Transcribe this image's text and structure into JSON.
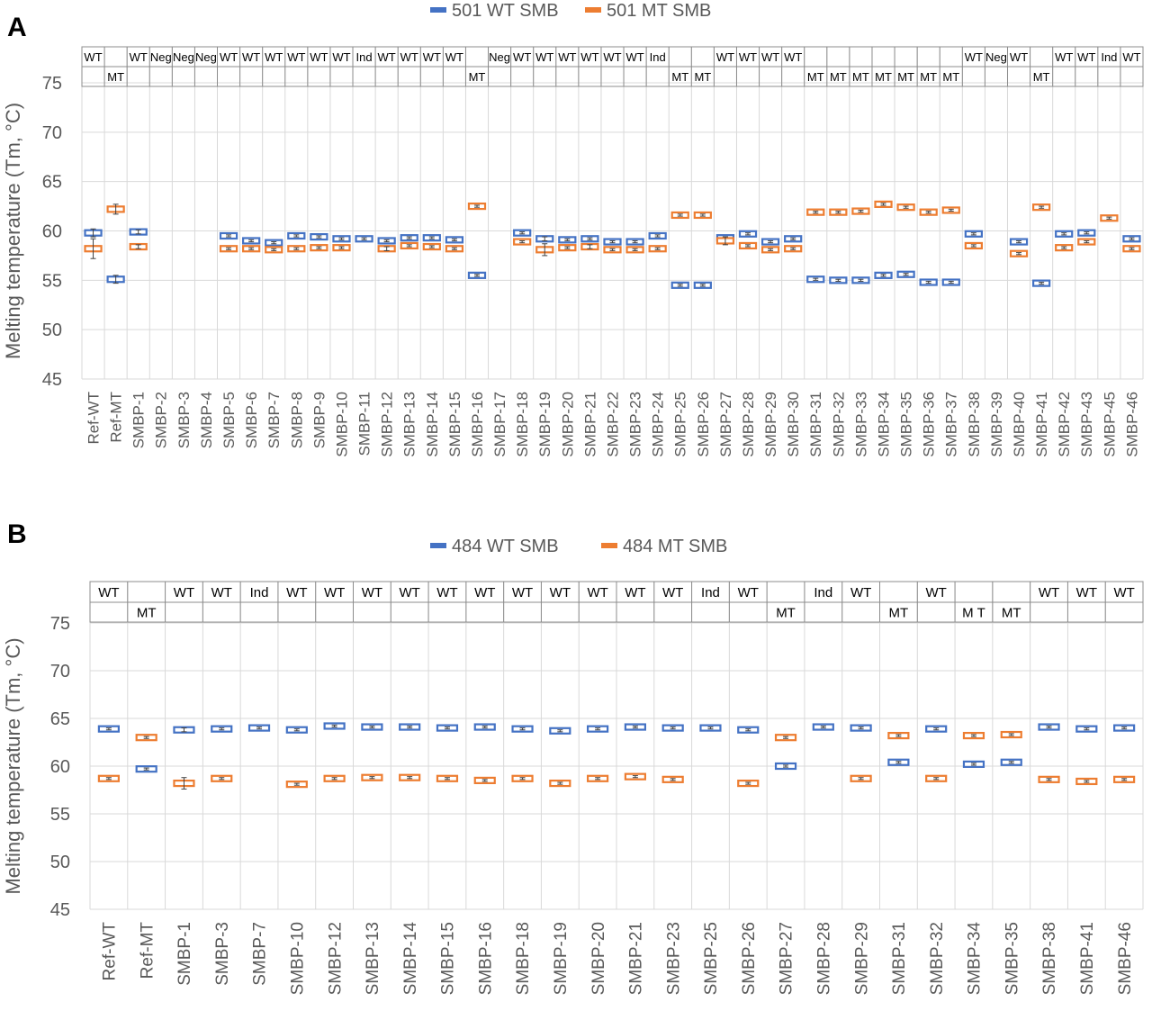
{
  "chart_data": [
    {
      "type": "scatter",
      "panel_label": "A",
      "ylabel": "Melting temperature (Tm, °C)",
      "ylim": [
        45,
        75
      ],
      "yticks": [
        45,
        50,
        55,
        60,
        65,
        70,
        75
      ],
      "grid": true,
      "legend_position": "top-center",
      "colors": {
        "wt": "#4472C4",
        "mt": "#ED7D31"
      },
      "series": [
        {
          "name": "501 WT SMB",
          "key": "wt"
        },
        {
          "name": "501 MT SMB",
          "key": "mt"
        }
      ],
      "categories": [
        "Ref-WT",
        "Ref-MT",
        "SMBP-1",
        "SMBP-2",
        "SMBP-3",
        "SMBP-4",
        "SMBP-5",
        "SMBP-6",
        "SMBP-7",
        "SMBP-8",
        "SMBP-9",
        "SMBP-10",
        "SMBP-11",
        "SMBP-12",
        "SMBP-13",
        "SMBP-14",
        "SMBP-15",
        "SMBP-16",
        "SMBP-17",
        "SMBP-18",
        "SMBP-19",
        "SMBP-20",
        "SMBP-21",
        "SMBP-22",
        "SMBP-23",
        "SMBP-24",
        "SMBP-25",
        "SMBP-26",
        "SMBP-27",
        "SMBP-28",
        "SMBP-29",
        "SMBP-30",
        "SMBP-31",
        "SMBP-32",
        "SMBP-33",
        "SMBP-34",
        "SMBP-35",
        "SMBP-36",
        "SMBP-37",
        "SMBP-38",
        "SMBP-39",
        "SMBP-40",
        "SMBP-41",
        "SMBP-42",
        "SMBP-43",
        "SMBP-45",
        "SMBP-46"
      ],
      "genotype_top": [
        "WT",
        "",
        "WT",
        "Neg",
        "Neg",
        "Neg",
        "WT",
        "WT",
        "WT",
        "WT",
        "WT",
        "WT",
        "Ind",
        "WT",
        "WT",
        "WT",
        "WT",
        "",
        "Neg",
        "WT",
        "WT",
        "WT",
        "WT",
        "WT",
        "WT",
        "Ind",
        "",
        "",
        "WT",
        "WT",
        "WT",
        "WT",
        "",
        "",
        "",
        "",
        "",
        "",
        "",
        "WT",
        "Neg",
        "WT",
        "",
        "WT",
        "WT",
        "Ind",
        "WT"
      ],
      "genotype_bottom": [
        "",
        "MT",
        "",
        "",
        "",
        "",
        "",
        "",
        "",
        "",
        "",
        "",
        "",
        "",
        "",
        "",
        "",
        "MT",
        "",
        "",
        "",
        "",
        "",
        "",
        "",
        "",
        "MT",
        "MT",
        "",
        "",
        "",
        "",
        "MT",
        "MT",
        "MT",
        "MT",
        "MT",
        "MT",
        "MT",
        "",
        "",
        "",
        "MT",
        "",
        "",
        "",
        ""
      ],
      "wt_values": [
        59.8,
        55.1,
        59.9,
        null,
        null,
        null,
        59.5,
        59.0,
        58.8,
        59.5,
        59.4,
        59.2,
        59.2,
        59.0,
        59.3,
        59.3,
        59.1,
        55.5,
        null,
        59.8,
        59.2,
        59.1,
        59.2,
        58.9,
        58.9,
        59.5,
        54.5,
        54.5,
        59.3,
        59.7,
        58.9,
        59.2,
        55.1,
        55.0,
        55.0,
        55.5,
        55.6,
        54.8,
        54.8,
        59.7,
        null,
        58.9,
        54.7,
        59.7,
        59.8,
        null,
        59.2
      ],
      "mt_values": [
        58.2,
        62.2,
        58.4,
        null,
        null,
        null,
        58.2,
        58.2,
        58.1,
        58.2,
        58.3,
        58.3,
        null,
        58.2,
        58.5,
        58.4,
        58.2,
        62.5,
        null,
        58.9,
        58.1,
        58.3,
        58.4,
        58.1,
        58.1,
        58.2,
        61.6,
        61.6,
        59.0,
        58.5,
        58.1,
        58.2,
        61.9,
        61.9,
        62.0,
        62.7,
        62.4,
        61.9,
        62.1,
        58.5,
        null,
        57.7,
        62.4,
        58.3,
        58.9,
        61.3,
        58.2
      ],
      "wt_err": [
        0.4,
        0.4,
        0.2,
        null,
        null,
        null,
        0.1,
        0.1,
        0.1,
        0.1,
        0.1,
        0.1,
        0.1,
        0.1,
        0.1,
        0.1,
        0.1,
        0.1,
        null,
        0.1,
        0.2,
        0.1,
        0.1,
        0.1,
        0.1,
        0.1,
        0.1,
        0.1,
        0.1,
        0.1,
        0.1,
        0.1,
        0.1,
        0.1,
        0.1,
        0.1,
        0.1,
        0.1,
        0.1,
        0.1,
        null,
        0.1,
        0.1,
        0.1,
        0.1,
        null,
        0.1
      ],
      "mt_err": [
        1.0,
        0.5,
        0.2,
        null,
        null,
        null,
        0.1,
        0.1,
        0.1,
        0.1,
        0.1,
        0.1,
        null,
        0.2,
        0.1,
        0.1,
        0.1,
        0.1,
        null,
        0.1,
        0.6,
        0.1,
        0.2,
        0.1,
        0.1,
        0.1,
        0.1,
        0.1,
        0.4,
        0.1,
        0.1,
        0.1,
        0.1,
        0.1,
        0.1,
        0.1,
        0.1,
        0.1,
        0.1,
        0.1,
        null,
        0.1,
        0.1,
        0.1,
        0.1,
        0.1,
        0.1
      ]
    },
    {
      "type": "scatter",
      "panel_label": "B",
      "ylabel": "Melting temperature (Tm, °C)",
      "ylim": [
        45,
        75
      ],
      "yticks": [
        45,
        50,
        55,
        60,
        65,
        70,
        75
      ],
      "grid": true,
      "legend_position": "top-center",
      "colors": {
        "wt": "#4472C4",
        "mt": "#ED7D31"
      },
      "series": [
        {
          "name": "484 WT SMB",
          "key": "wt"
        },
        {
          "name": "484  MT SMB",
          "key": "mt"
        }
      ],
      "categories": [
        "Ref-WT",
        "Ref-MT",
        "SMBP-1",
        "SMBP-3",
        "SMBP-7",
        "SMBP-10",
        "SMBP-12",
        "SMBP-13",
        "SMBP-14",
        "SMBP-15",
        "SMBP-16",
        "SMBP-18",
        "SMBP-19",
        "SMBP-20",
        "SMBP-21",
        "SMBP-23",
        "SMBP-25",
        "SMBP-26",
        "SMBP-27",
        "SMBP-28",
        "SMBP-29",
        "SMBP-31",
        "SMBP-32",
        "SMBP-34",
        "SMBP-35",
        "SMBP-38",
        "SMBP-41",
        "SMBP-46"
      ],
      "genotype_top": [
        "WT",
        "",
        "WT",
        "WT",
        "Ind",
        "WT",
        "WT",
        "WT",
        "WT",
        "WT",
        "WT",
        "WT",
        "WT",
        "WT",
        "WT",
        "WT",
        "Ind",
        "WT",
        "",
        "Ind",
        "WT",
        "",
        "WT",
        "",
        "",
        "WT",
        "WT",
        "WT"
      ],
      "genotype_bottom": [
        "",
        "MT",
        "",
        "",
        "",
        "",
        "",
        "",
        "",
        "",
        "",
        "",
        "",
        "",
        "",
        "",
        "",
        "",
        "MT",
        "",
        "",
        "MT",
        "",
        "M T",
        "MT",
        "",
        "",
        ""
      ],
      "wt_values": [
        63.9,
        59.7,
        63.8,
        63.9,
        64.0,
        63.8,
        64.2,
        64.1,
        64.1,
        64.0,
        64.1,
        63.9,
        63.7,
        63.9,
        64.1,
        64.0,
        64.0,
        63.8,
        60.0,
        64.1,
        64.0,
        60.4,
        63.9,
        60.2,
        60.4,
        64.1,
        63.9,
        64.0
      ],
      "mt_values": [
        58.7,
        63.0,
        58.2,
        58.7,
        null,
        58.1,
        58.7,
        58.8,
        58.8,
        58.7,
        58.5,
        58.7,
        58.2,
        58.7,
        58.9,
        58.6,
        null,
        58.2,
        63.0,
        null,
        58.7,
        63.2,
        58.7,
        63.2,
        63.3,
        58.6,
        58.4,
        58.6
      ],
      "wt_err": [
        0.1,
        0.1,
        0.2,
        0.1,
        0.1,
        0.1,
        0.1,
        0.1,
        0.1,
        0.1,
        0.1,
        0.1,
        0.1,
        0.1,
        0.1,
        0.1,
        0.1,
        0.1,
        0.1,
        0.1,
        0.1,
        0.1,
        0.1,
        0.1,
        0.1,
        0.1,
        0.1,
        0.1
      ],
      "mt_err": [
        0.1,
        0.1,
        0.6,
        0.1,
        null,
        0.1,
        0.1,
        0.1,
        0.1,
        0.1,
        0.1,
        0.1,
        0.1,
        0.1,
        0.1,
        0.1,
        null,
        0.1,
        0.1,
        null,
        0.1,
        0.1,
        0.1,
        0.1,
        0.1,
        0.1,
        0.1,
        0.1
      ]
    }
  ]
}
